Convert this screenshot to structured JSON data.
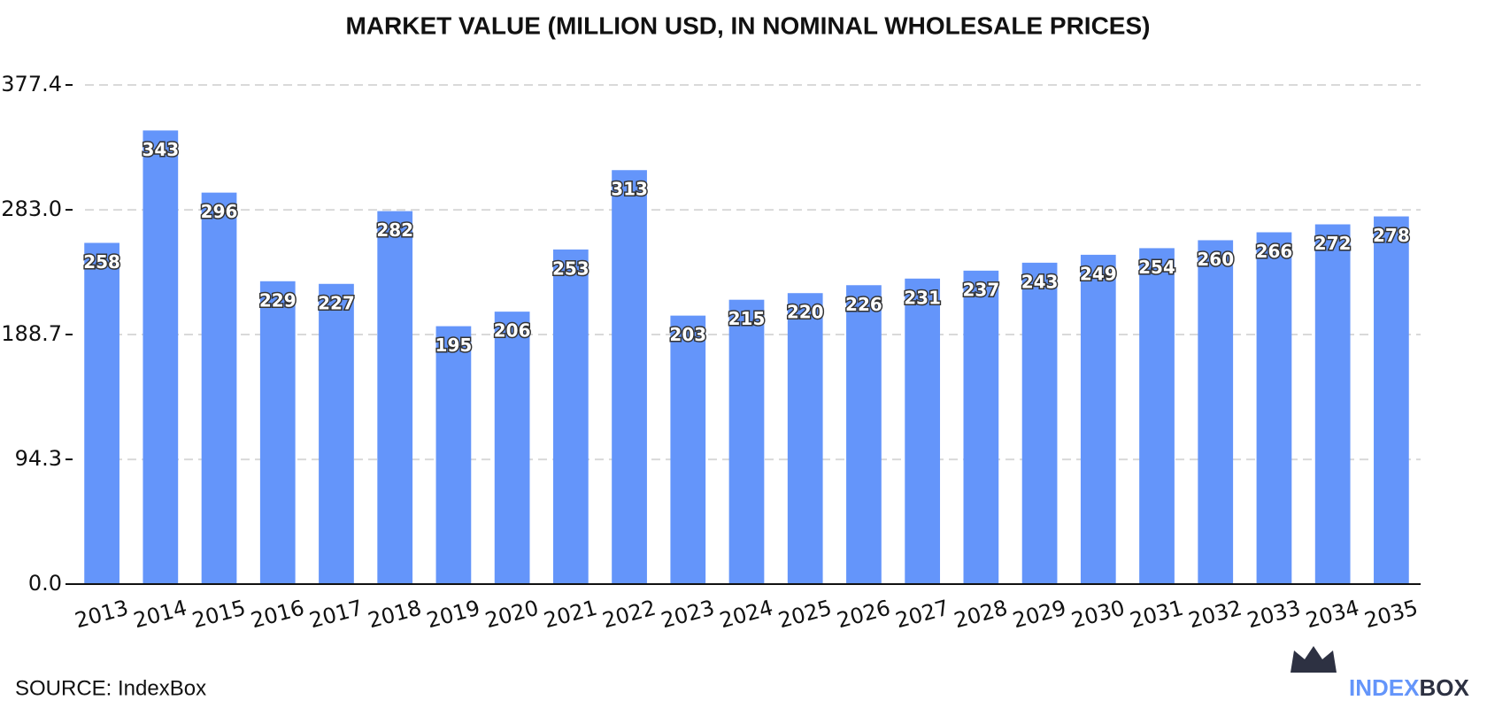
{
  "chart_data": {
    "type": "bar",
    "title": "MARKET VALUE (MILLION USD, IN NOMINAL WHOLESALE PRICES)",
    "categories": [
      "2013",
      "2014",
      "2015",
      "2016",
      "2017",
      "2018",
      "2019",
      "2020",
      "2021",
      "2022",
      "2023",
      "2024",
      "2025",
      "2026",
      "2027",
      "2028",
      "2029",
      "2030",
      "2031",
      "2032",
      "2033",
      "2034",
      "2035"
    ],
    "values": [
      258,
      343,
      296,
      229,
      227,
      282,
      195,
      206,
      253,
      313,
      203,
      215,
      220,
      226,
      231,
      237,
      243,
      249,
      254,
      260,
      266,
      272,
      278
    ],
    "color": "#6495fa",
    "ylim": [
      0,
      377.4
    ],
    "yticks": [
      {
        "value": 0,
        "label": "0.0"
      },
      94.3,
      188.7,
      {
        "value": 283.0,
        "label": "283.0"
      },
      377.4
    ],
    "grid": true
  },
  "source": "SOURCE: IndexBox",
  "logo": {
    "first": "INDEX",
    "second": "BOX"
  }
}
